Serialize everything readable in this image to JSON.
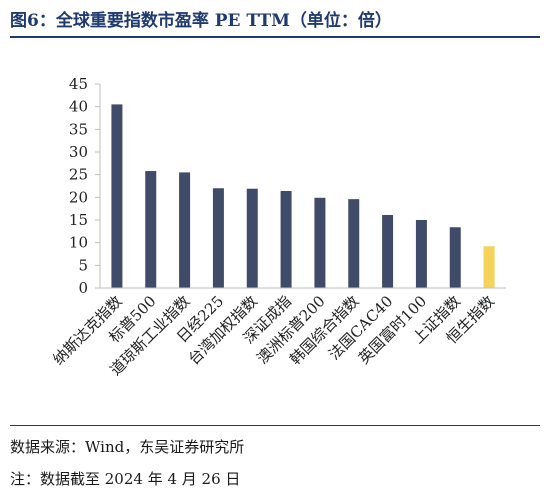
{
  "title": "图6：全球重要指数市盈率 PE TTM（单位：倍）",
  "source": "数据来源：Wind，东吴证券研究所",
  "footnote": "注：数据截至 2024 年 4 月 26 日",
  "colors": {
    "bar": "#404b69",
    "highlight": "#f5d35a",
    "axis": "#bfbfbf",
    "rule": "#1f3a6e"
  },
  "chart_data": {
    "type": "bar",
    "title": "",
    "xlabel": "",
    "ylabel": "",
    "ylim": [
      0,
      45
    ],
    "yticks": [
      0,
      5,
      10,
      15,
      20,
      25,
      30,
      35,
      40,
      45
    ],
    "grid": false,
    "legend": "none",
    "categories": [
      "纳斯达克指数",
      "标普500",
      "道琼斯工业指数",
      "日经225",
      "台湾加权指数",
      "深证成指",
      "澳洲标普200",
      "韩国综合指数",
      "法国CAC40",
      "英国富时100",
      "上证指数",
      "恒生指数"
    ],
    "values": [
      40.5,
      25.8,
      25.5,
      22.0,
      21.9,
      21.4,
      19.9,
      19.6,
      16.1,
      15.0,
      13.4,
      9.2
    ],
    "highlight_index": 11
  }
}
